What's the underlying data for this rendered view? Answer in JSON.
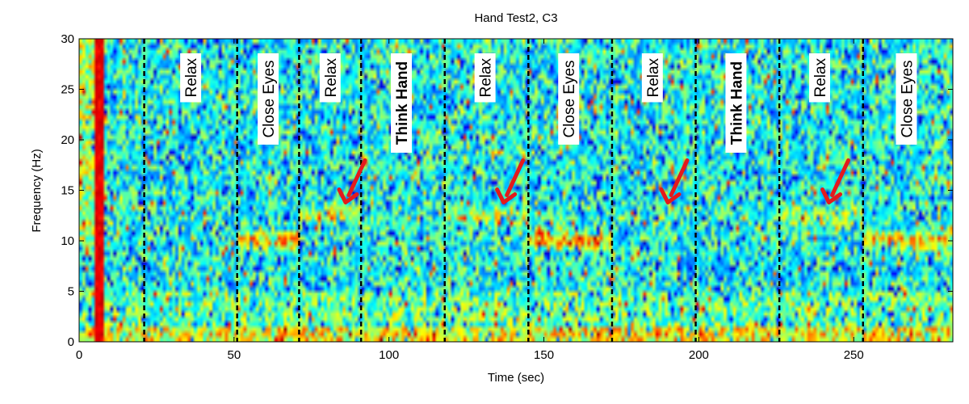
{
  "chart_data": {
    "type": "heatmap",
    "title": "Hand Test2, C3",
    "xlabel": "Time (sec)",
    "ylabel": "Frequency (Hz)",
    "xlim": [
      0,
      282
    ],
    "ylim": [
      0,
      30
    ],
    "x_ticks": [
      0,
      50,
      100,
      150,
      200,
      250
    ],
    "y_ticks": [
      0,
      5,
      10,
      15,
      20,
      25,
      30
    ],
    "colormap": [
      "#00008f",
      "#0000ff",
      "#00ffff",
      "#ffff00",
      "#ff0000",
      "#800000"
    ],
    "boundaries": [
      21,
      51,
      71,
      91,
      118,
      145,
      172,
      199,
      226,
      253
    ],
    "segments": [
      {
        "label": "Relax",
        "x": 36,
        "bold": false
      },
      {
        "label": "Close Eyes",
        "x": 61,
        "bold": false
      },
      {
        "label": "Relax",
        "x": 81,
        "bold": false
      },
      {
        "label": "Think Hand",
        "x": 104,
        "bold": true
      },
      {
        "label": "Relax",
        "x": 131,
        "bold": false
      },
      {
        "label": "Close Eyes",
        "x": 158,
        "bold": false
      },
      {
        "label": "Relax",
        "x": 185,
        "bold": false
      },
      {
        "label": "Think Hand",
        "x": 212,
        "bold": true
      },
      {
        "label": "Relax",
        "x": 239,
        "bold": false
      },
      {
        "label": "Close Eyes",
        "x": 267,
        "bold": false
      }
    ],
    "arrows": [
      {
        "x": 86,
        "y": 13.8
      },
      {
        "x": 137,
        "y": 13.8
      },
      {
        "x": 190,
        "y": 13.8
      },
      {
        "x": 242,
        "y": 13.8
      }
    ],
    "arrow_color": "#e41a1c",
    "bands": [
      {
        "x_range": [
          51,
          71
        ],
        "y": 10,
        "strength": 0.75
      },
      {
        "x_range": [
          145,
          172
        ],
        "y": 10,
        "strength": 0.75
      },
      {
        "x_range": [
          253,
          282
        ],
        "y": 10,
        "strength": 0.7
      },
      {
        "x_range": [
          71,
          91
        ],
        "y": 12.5,
        "strength": 0.5
      },
      {
        "x_range": [
          118,
          145
        ],
        "y": 12.5,
        "strength": 0.45
      },
      {
        "x_range": [
          226,
          253
        ],
        "y": 12.5,
        "strength": 0.45
      }
    ],
    "artifact": {
      "x_range": [
        5,
        8
      ],
      "strength": 1.0
    }
  }
}
